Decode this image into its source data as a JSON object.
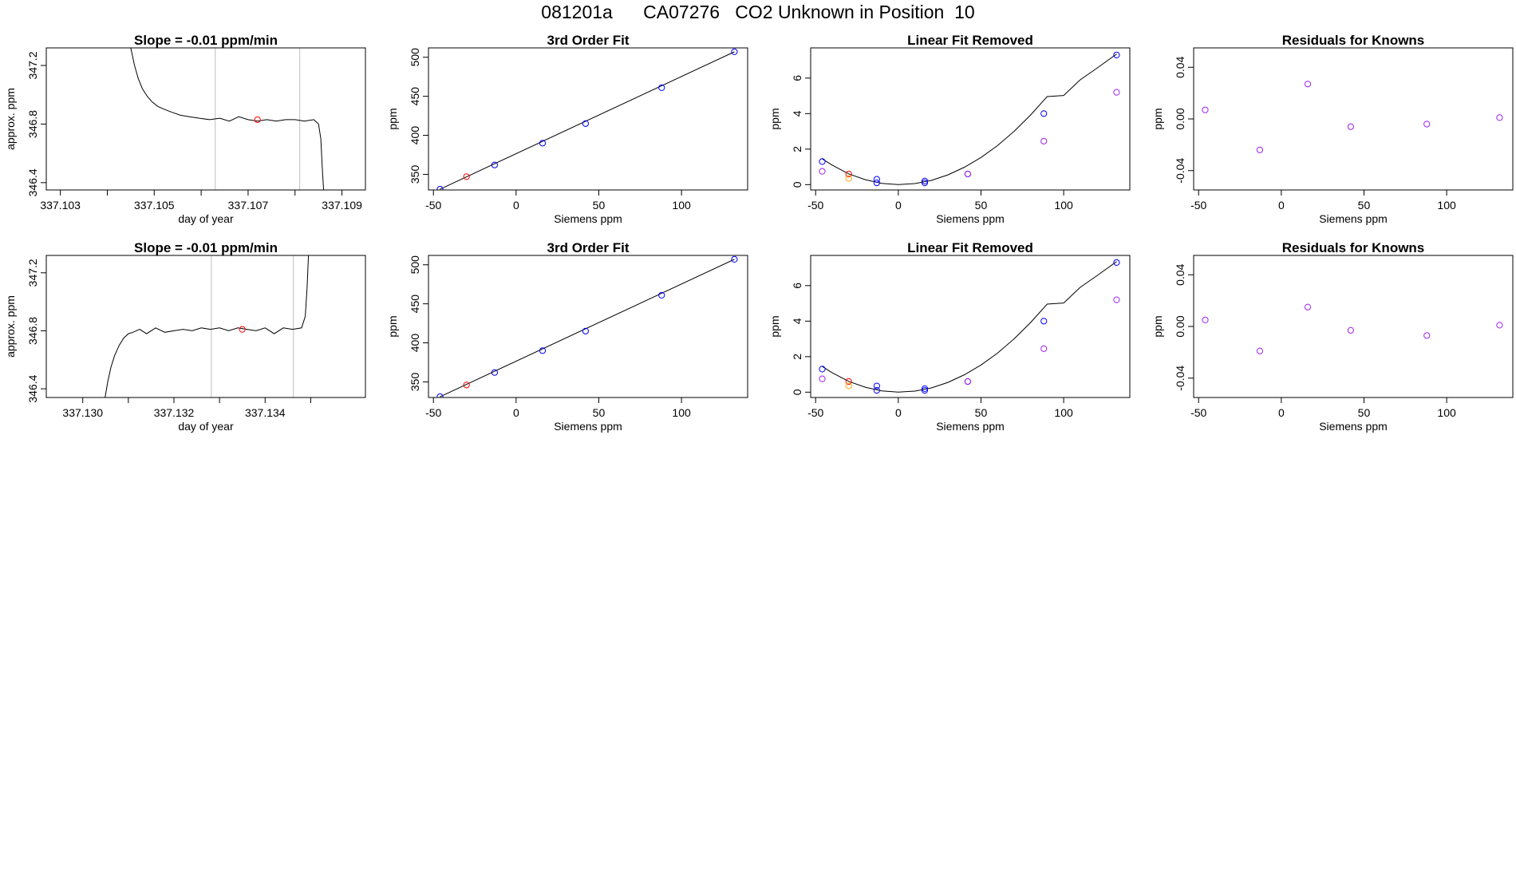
{
  "page": {
    "title": "081201a      CA07276   CO2 Unknown in Position  10"
  },
  "colors": {
    "line": "#000000",
    "frame": "#000000",
    "window": "#bebebe",
    "known": "#0000ff",
    "unknown": "#ff0000",
    "residual": "#a020f0",
    "removed_unknown": "#ffa500"
  },
  "chart_data": [
    {
      "type": "line",
      "title": "Slope =  -0.01  ppm/min",
      "xlabel": "day of year",
      "ylabel": "approx. ppm",
      "xlim": [
        337.1027,
        337.1095
      ],
      "ylim": [
        346.35,
        347.32
      ],
      "xticks": [
        337.103,
        337.104,
        337.105,
        337.106,
        337.107,
        337.108,
        337.109
      ],
      "xtick_labels": [
        "337.103",
        "",
        "337.105",
        "",
        "337.107",
        "",
        "337.109"
      ],
      "yticks": [
        346.4,
        346.8,
        347.2
      ],
      "ytick_labels": [
        "346.4",
        "346.8",
        "347.2"
      ],
      "vlines": [
        337.1063,
        337.1081
      ],
      "series": [
        {
          "x": [
            337.1045,
            337.10458,
            337.10466,
            337.10475,
            337.10485,
            337.10496,
            337.10508,
            337.10522,
            337.10538,
            337.10556,
            337.10575,
            337.10596,
            337.10618,
            337.1064,
            337.1066,
            337.1068,
            337.107,
            337.1072,
            337.1074,
            337.1076,
            337.1078,
            337.108,
            337.1082,
            337.1084,
            337.1085,
            337.10855,
            337.10858,
            337.10861
          ],
          "y": [
            347.32,
            347.2,
            347.11,
            347.04,
            346.99,
            346.95,
            346.92,
            346.9,
            346.88,
            346.86,
            346.85,
            346.84,
            346.83,
            346.84,
            346.82,
            346.85,
            346.83,
            346.82,
            346.83,
            346.82,
            346.83,
            346.83,
            346.82,
            346.83,
            346.8,
            346.7,
            346.5,
            346.35
          ]
        }
      ],
      "points": [
        {
          "x": 337.1072,
          "y": 346.83,
          "role": "unknown"
        }
      ]
    },
    {
      "type": "scatter",
      "title": "3rd Order Fit",
      "xlabel": "Siemens ppm",
      "ylabel": "ppm",
      "xlim": [
        -53,
        140
      ],
      "ylim": [
        330,
        512
      ],
      "xticks": [
        -50,
        0,
        50,
        100
      ],
      "xtick_labels": [
        "-50",
        "0",
        "50",
        "100"
      ],
      "yticks": [
        350,
        400,
        450,
        500
      ],
      "ytick_labels": [
        "350",
        "400",
        "450",
        "500"
      ],
      "fit": {
        "x": [
          -46,
          132
        ],
        "y": [
          331,
          507
        ]
      },
      "points": [
        {
          "x": -46,
          "y": 331,
          "role": "known"
        },
        {
          "x": -13,
          "y": 362,
          "role": "known"
        },
        {
          "x": 16,
          "y": 390,
          "role": "known"
        },
        {
          "x": 42,
          "y": 415,
          "role": "known"
        },
        {
          "x": 88,
          "y": 461,
          "role": "known"
        },
        {
          "x": 132,
          "y": 507,
          "role": "known"
        },
        {
          "x": -30,
          "y": 347,
          "role": "unknown"
        }
      ]
    },
    {
      "type": "scatter",
      "title": "Linear Fit Removed",
      "xlabel": "Siemens ppm",
      "ylabel": "ppm",
      "xlim": [
        -53,
        140
      ],
      "ylim": [
        -0.3,
        7.7
      ],
      "xticks": [
        -50,
        0,
        50,
        100
      ],
      "xtick_labels": [
        "-50",
        "0",
        "50",
        "100"
      ],
      "yticks": [
        0,
        2,
        4,
        6
      ],
      "ytick_labels": [
        "0",
        "2",
        "4",
        "6"
      ],
      "curve": {
        "x": [
          -46,
          -40,
          -30,
          -20,
          -10,
          0,
          10,
          20,
          30,
          40,
          50,
          60,
          70,
          80,
          90,
          100,
          110,
          120,
          132
        ],
        "y": [
          1.45,
          1.1,
          0.61,
          0.28,
          0.07,
          0.0,
          0.06,
          0.24,
          0.55,
          0.98,
          1.53,
          2.2,
          3.0,
          3.92,
          4.96,
          5.02,
          5.9,
          6.55,
          7.35
        ]
      },
      "points": [
        {
          "x": -46,
          "y": 1.3,
          "role": "known"
        },
        {
          "x": -13,
          "y": 0.3,
          "role": "known"
        },
        {
          "x": -13,
          "y": 0.1,
          "role": "known"
        },
        {
          "x": 16,
          "y": 0.2,
          "role": "known"
        },
        {
          "x": 16,
          "y": 0.1,
          "role": "known"
        },
        {
          "x": 42,
          "y": 0.6,
          "role": "known"
        },
        {
          "x": 88,
          "y": 4.0,
          "role": "known"
        },
        {
          "x": 132,
          "y": 7.3,
          "role": "known"
        },
        {
          "x": -30,
          "y": 0.6,
          "role": "unknown"
        },
        {
          "x": -30,
          "y": 0.35,
          "role": "removed_unknown"
        },
        {
          "x": -46,
          "y": 0.75,
          "role": "residual"
        },
        {
          "x": 42,
          "y": 0.6,
          "role": "residual"
        },
        {
          "x": 88,
          "y": 2.45,
          "role": "residual"
        },
        {
          "x": 132,
          "y": 5.2,
          "role": "residual"
        }
      ]
    },
    {
      "type": "scatter",
      "title": "Residuals for Knowns",
      "xlabel": "Siemens ppm",
      "ylabel": "ppm",
      "xlim": [
        -53,
        140
      ],
      "ylim": [
        -0.055,
        0.055
      ],
      "xticks": [
        -50,
        0,
        50,
        100
      ],
      "xtick_labels": [
        "-50",
        "0",
        "50",
        "100"
      ],
      "yticks": [
        -0.04,
        0.0,
        0.04
      ],
      "ytick_labels": [
        "-0.04",
        "0.00",
        "0.04"
      ],
      "points": [
        {
          "x": -46,
          "y": 0.007,
          "role": "residual"
        },
        {
          "x": -13,
          "y": -0.024,
          "role": "residual"
        },
        {
          "x": 16,
          "y": 0.027,
          "role": "residual"
        },
        {
          "x": 42,
          "y": -0.006,
          "role": "residual"
        },
        {
          "x": 88,
          "y": -0.004,
          "role": "residual"
        },
        {
          "x": 132,
          "y": 0.001,
          "role": "residual"
        }
      ]
    },
    {
      "type": "line",
      "title": "Slope =  -0.01  ppm/min",
      "xlabel": "day of year",
      "ylabel": "approx. ppm",
      "xlim": [
        337.1292,
        337.1362
      ],
      "ylim": [
        346.34,
        347.32
      ],
      "xticks": [
        337.13,
        337.131,
        337.132,
        337.133,
        337.134,
        337.135
      ],
      "xtick_labels": [
        "337.130",
        "",
        "337.132",
        "",
        "337.134",
        ""
      ],
      "yticks": [
        346.4,
        346.8,
        347.2
      ],
      "ytick_labels": [
        "346.4",
        "346.8",
        "347.2"
      ],
      "vlines": [
        337.13282,
        337.13462
      ],
      "series": [
        {
          "x": [
            337.13049,
            337.13055,
            337.13062,
            337.1307,
            337.1308,
            337.1309,
            337.131,
            337.1311,
            337.13125,
            337.1314,
            337.1316,
            337.1318,
            337.132,
            337.1322,
            337.1324,
            337.1326,
            337.1328,
            337.133,
            337.1332,
            337.1334,
            337.1336,
            337.1338,
            337.134,
            337.1342,
            337.1344,
            337.1346,
            337.1348,
            337.13488,
            337.13492,
            337.13495
          ],
          "y": [
            346.34,
            346.45,
            346.55,
            346.63,
            346.7,
            346.75,
            346.78,
            346.79,
            346.81,
            346.78,
            346.82,
            346.79,
            346.8,
            346.81,
            346.8,
            346.82,
            346.81,
            346.82,
            346.8,
            346.82,
            346.81,
            346.8,
            346.82,
            346.78,
            346.82,
            346.81,
            346.82,
            346.9,
            347.1,
            347.32
          ]
        }
      ],
      "points": [
        {
          "x": 337.1335,
          "y": 346.81,
          "role": "unknown"
        }
      ]
    },
    {
      "type": "scatter",
      "title": "3rd Order Fit",
      "xlabel": "Siemens ppm",
      "ylabel": "ppm",
      "xlim": [
        -53,
        140
      ],
      "ylim": [
        330,
        512
      ],
      "xticks": [
        -50,
        0,
        50,
        100
      ],
      "xtick_labels": [
        "-50",
        "0",
        "50",
        "100"
      ],
      "yticks": [
        350,
        400,
        450,
        500
      ],
      "ytick_labels": [
        "350",
        "400",
        "450",
        "500"
      ],
      "fit": {
        "x": [
          -46,
          132
        ],
        "y": [
          331,
          507
        ]
      },
      "points": [
        {
          "x": -46,
          "y": 331,
          "role": "known"
        },
        {
          "x": -13,
          "y": 362,
          "role": "known"
        },
        {
          "x": 16,
          "y": 390,
          "role": "known"
        },
        {
          "x": 42,
          "y": 415,
          "role": "known"
        },
        {
          "x": 88,
          "y": 461,
          "role": "known"
        },
        {
          "x": 132,
          "y": 507,
          "role": "known"
        },
        {
          "x": -30,
          "y": 346,
          "role": "unknown"
        }
      ]
    },
    {
      "type": "scatter",
      "title": "Linear Fit Removed",
      "xlabel": "Siemens ppm",
      "ylabel": "ppm",
      "xlim": [
        -53,
        140
      ],
      "ylim": [
        -0.3,
        7.7
      ],
      "xticks": [
        -50,
        0,
        50,
        100
      ],
      "xtick_labels": [
        "-50",
        "0",
        "50",
        "100"
      ],
      "yticks": [
        0,
        2,
        4,
        6
      ],
      "ytick_labels": [
        "0",
        "2",
        "4",
        "6"
      ],
      "curve": {
        "x": [
          -46,
          -40,
          -30,
          -20,
          -10,
          0,
          10,
          20,
          30,
          40,
          50,
          60,
          70,
          80,
          90,
          100,
          110,
          120,
          132
        ],
        "y": [
          1.45,
          1.1,
          0.61,
          0.28,
          0.07,
          0.0,
          0.06,
          0.24,
          0.55,
          0.98,
          1.53,
          2.2,
          3.0,
          3.92,
          4.96,
          5.02,
          5.9,
          6.55,
          7.35
        ]
      },
      "points": [
        {
          "x": -46,
          "y": 1.3,
          "role": "known"
        },
        {
          "x": -13,
          "y": 0.35,
          "role": "known"
        },
        {
          "x": -13,
          "y": 0.1,
          "role": "known"
        },
        {
          "x": 16,
          "y": 0.2,
          "role": "known"
        },
        {
          "x": 16,
          "y": 0.1,
          "role": "known"
        },
        {
          "x": 42,
          "y": 0.6,
          "role": "known"
        },
        {
          "x": 88,
          "y": 4.0,
          "role": "known"
        },
        {
          "x": 132,
          "y": 7.3,
          "role": "known"
        },
        {
          "x": -30,
          "y": 0.6,
          "role": "unknown"
        },
        {
          "x": -30,
          "y": 0.35,
          "role": "removed_unknown"
        },
        {
          "x": -46,
          "y": 0.75,
          "role": "residual"
        },
        {
          "x": 42,
          "y": 0.6,
          "role": "residual"
        },
        {
          "x": 88,
          "y": 2.45,
          "role": "residual"
        },
        {
          "x": 132,
          "y": 5.2,
          "role": "residual"
        }
      ]
    },
    {
      "type": "scatter",
      "title": "Residuals for Knowns",
      "xlabel": "Siemens ppm",
      "ylabel": "ppm",
      "xlim": [
        -53,
        140
      ],
      "ylim": [
        -0.055,
        0.055
      ],
      "xticks": [
        -50,
        0,
        50,
        100
      ],
      "xtick_labels": [
        "-50",
        "0",
        "50",
        "100"
      ],
      "yticks": [
        -0.04,
        0.0,
        0.04
      ],
      "ytick_labels": [
        "-0.04",
        "0.00",
        "0.04"
      ],
      "points": [
        {
          "x": -46,
          "y": 0.005,
          "role": "residual"
        },
        {
          "x": -13,
          "y": -0.019,
          "role": "residual"
        },
        {
          "x": 16,
          "y": 0.015,
          "role": "residual"
        },
        {
          "x": 42,
          "y": -0.003,
          "role": "residual"
        },
        {
          "x": 88,
          "y": -0.007,
          "role": "residual"
        },
        {
          "x": 132,
          "y": 0.001,
          "role": "residual"
        }
      ]
    }
  ]
}
